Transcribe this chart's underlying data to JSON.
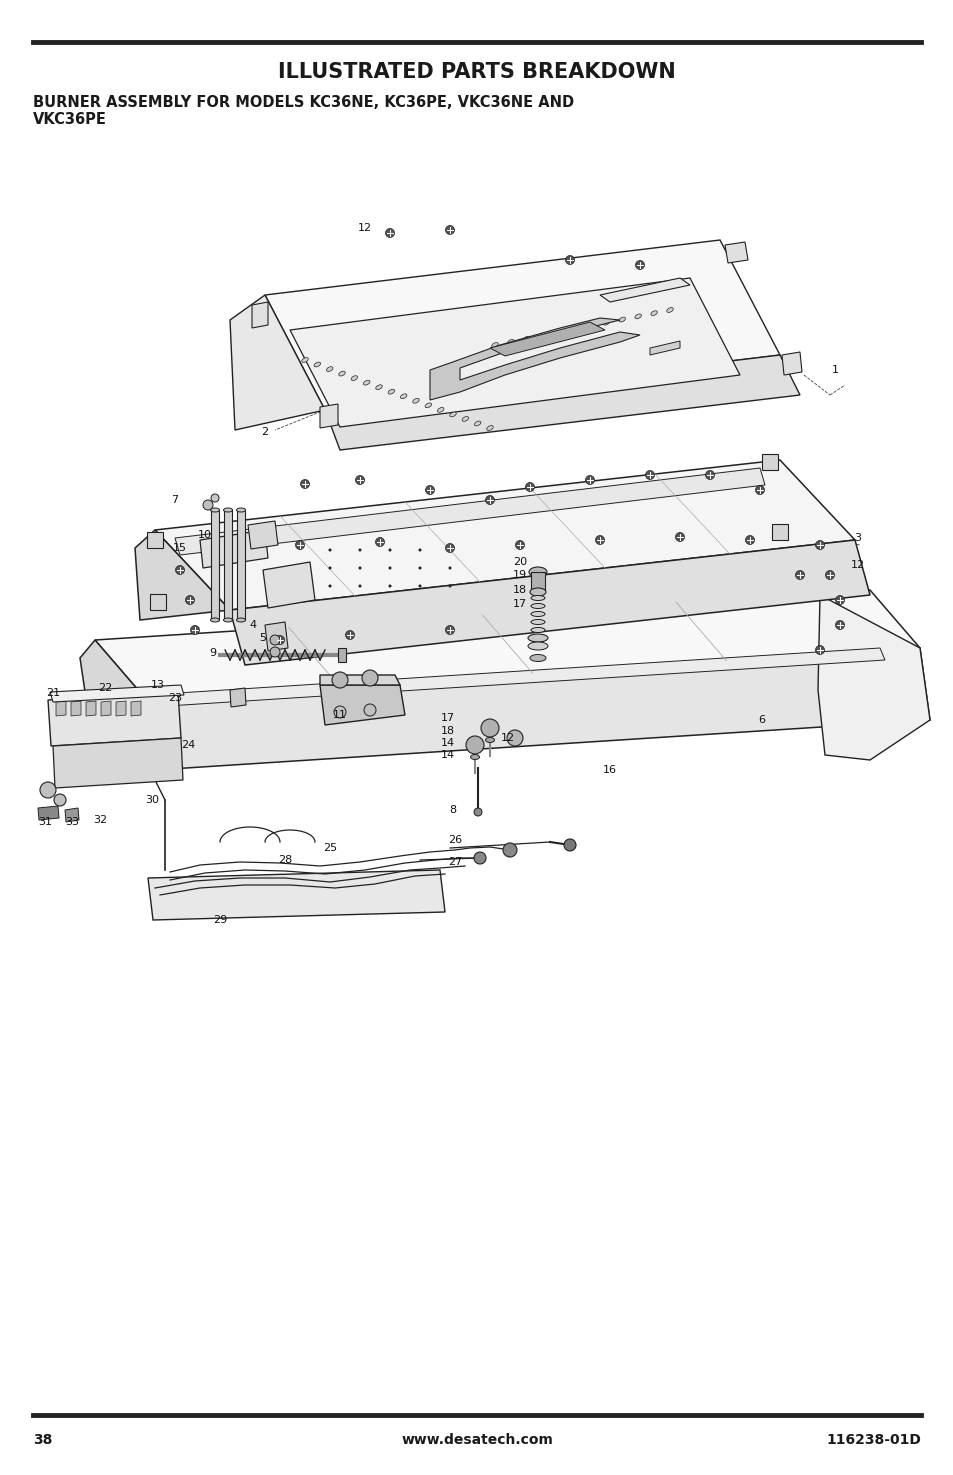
{
  "title": "ILLUSTRATED PARTS BREAKDOWN",
  "subtitle": "BURNER ASSEMBLY FOR MODELS KC36NE, KC36PE, VKC36NE AND\nVKC36PE",
  "page_number": "38",
  "website": "www.desatech.com",
  "doc_number": "116238-01D",
  "bg_color": "#ffffff",
  "text_color": "#1a1a1a",
  "line_color": "#222222",
  "title_fontsize": 15,
  "subtitle_fontsize": 10.5,
  "footer_fontsize": 10
}
